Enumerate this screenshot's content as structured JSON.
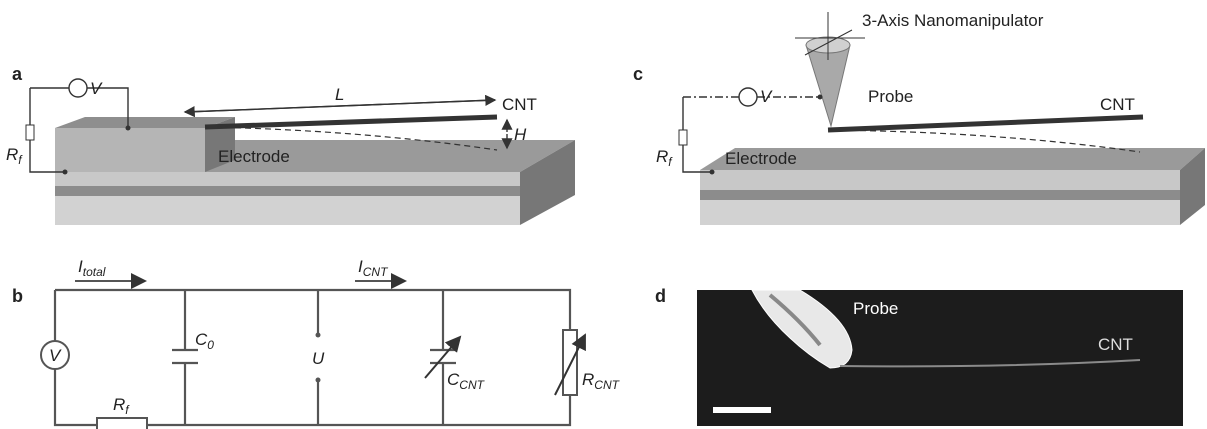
{
  "panels": {
    "a": {
      "label": "a",
      "voltmeter": "V",
      "length": "L",
      "cnt": "CNT",
      "gap": "H",
      "resistor": {
        "main": "R",
        "sub": "f"
      },
      "electrode": "Electrode"
    },
    "b": {
      "label": "b",
      "i_total": {
        "main": "I",
        "sub": "total"
      },
      "i_cnt": {
        "main": "I",
        "sub": "CNT"
      },
      "c0": {
        "main": "C",
        "sub": "0"
      },
      "u": "U",
      "c_cnt": {
        "main": "C",
        "sub": "CNT"
      },
      "r_cnt": {
        "main": "R",
        "sub": "CNT"
      },
      "source": "V",
      "resistor": {
        "main": "R",
        "sub": "f"
      }
    },
    "c": {
      "label": "c",
      "manipulator": "3-Axis Nanomanipulator",
      "probe": "Probe",
      "cnt": "CNT",
      "voltmeter": "V",
      "resistor": {
        "main": "R",
        "sub": "f"
      },
      "electrode": "Electrode"
    },
    "d": {
      "label": "d",
      "probe": "Probe",
      "cnt": "CNT"
    }
  }
}
